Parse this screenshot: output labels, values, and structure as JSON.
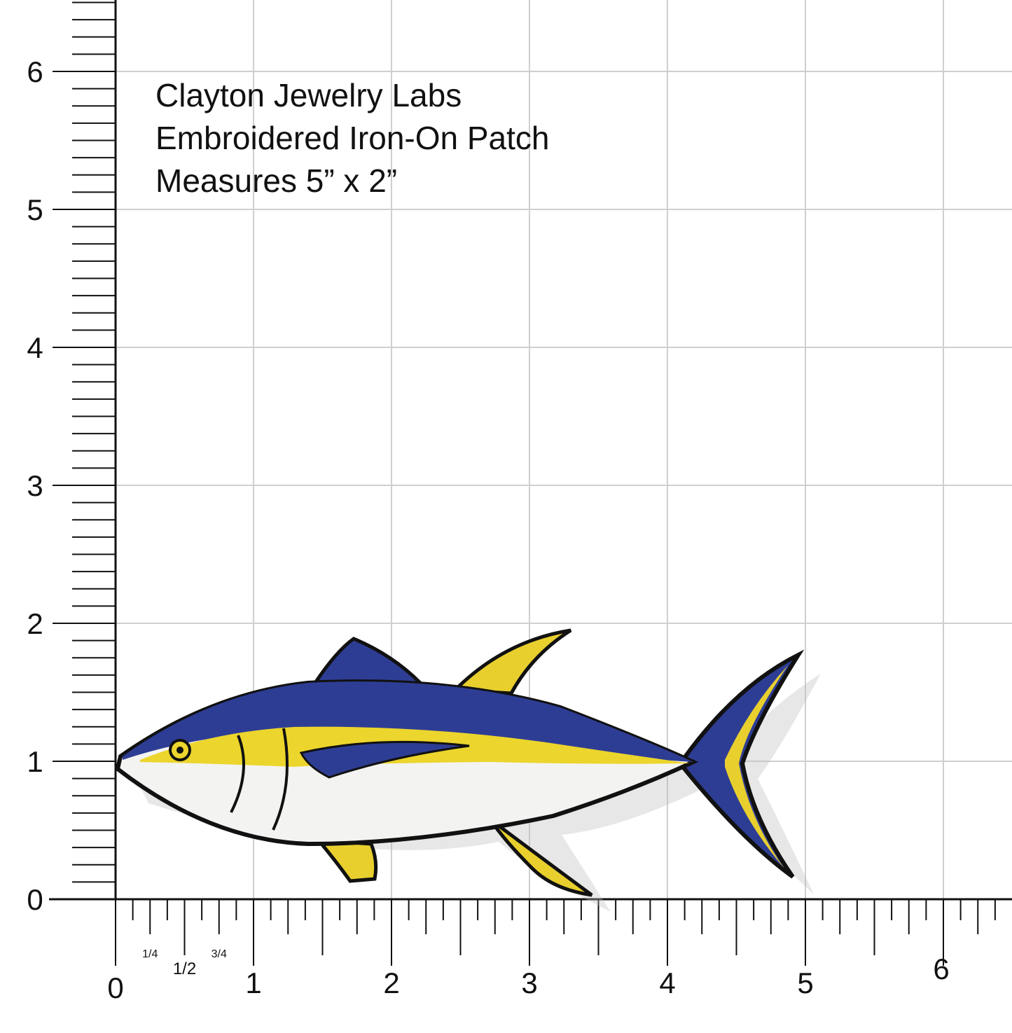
{
  "caption": {
    "lines": [
      "Clayton Jewelry Labs",
      "Embroidered Iron-On Patch",
      "Measures 5” x 2”"
    ]
  },
  "ruler": {
    "y_labels": [
      "0",
      "1",
      "2",
      "3",
      "4",
      "5",
      "6"
    ],
    "x_labels": [
      "0",
      "1",
      "2",
      "3",
      "4",
      "5",
      "6"
    ],
    "x_fraction_labels": [
      "1/4",
      "1/2",
      "3/4"
    ]
  }
}
